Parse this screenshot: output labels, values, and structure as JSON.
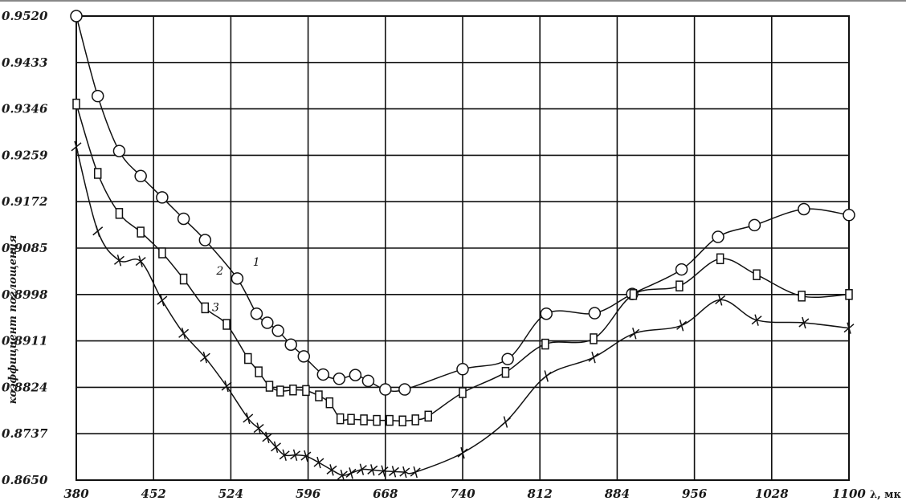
{
  "chart_data": {
    "type": "line",
    "title": "",
    "xlabel": "λ, мк",
    "ylabel": "коэффициент поглощения",
    "xlim": [
      380,
      1100
    ],
    "ylim": [
      0.865,
      0.952
    ],
    "xticks": [
      "380",
      "452",
      "524",
      "596",
      "668",
      "740",
      "812",
      "884",
      "956",
      "1028",
      "1100"
    ],
    "yticks": [
      "0.8650",
      "0.8737",
      "0.8824",
      "0.8911",
      "0.8998",
      "0.9085",
      "0.9172",
      "0.9259",
      "0.9346",
      "0.9433",
      "0.9520"
    ],
    "grid": true,
    "series": [
      {
        "name": "1",
        "marker": "circle",
        "x": [
          380,
          400,
          420,
          440,
          460,
          480,
          500,
          530,
          548,
          558,
          568,
          580,
          592,
          610,
          625,
          640,
          652,
          668,
          686,
          740,
          782,
          818,
          863,
          898,
          944,
          978,
          1012,
          1058,
          1100
        ],
        "y": [
          0.952,
          0.937,
          0.9267,
          0.922,
          0.918,
          0.914,
          0.91,
          0.9028,
          0.8962,
          0.8945,
          0.893,
          0.8904,
          0.8882,
          0.8848,
          0.884,
          0.8847,
          0.8836,
          0.882,
          0.882,
          0.8858,
          0.8877,
          0.8962,
          0.8963,
          0.8999,
          0.9045,
          0.9106,
          0.9128,
          0.9158,
          0.9147
        ]
      },
      {
        "name": "2",
        "marker": "square",
        "x": [
          380,
          400,
          420,
          440,
          460,
          480,
          500,
          520,
          540,
          550,
          560,
          570,
          582,
          594,
          606,
          616,
          626,
          636,
          648,
          660,
          672,
          684,
          696,
          708,
          740,
          780,
          817,
          862,
          899,
          942,
          980,
          1014,
          1056,
          1100
        ],
        "y": [
          0.9355,
          0.9225,
          0.915,
          0.9115,
          0.9076,
          0.9027,
          0.8973,
          0.8942,
          0.8878,
          0.8853,
          0.8826,
          0.8817,
          0.8819,
          0.8818,
          0.8808,
          0.8795,
          0.8765,
          0.8764,
          0.8763,
          0.8762,
          0.8762,
          0.8761,
          0.8763,
          0.877,
          0.8814,
          0.8852,
          0.8905,
          0.8915,
          0.8998,
          0.9014,
          0.9065,
          0.9035,
          0.8995,
          0.8998
        ]
      },
      {
        "name": "3",
        "marker": "x",
        "x": [
          380,
          400,
          420,
          440,
          460,
          480,
          500,
          520,
          540,
          550,
          558,
          566,
          574,
          584,
          594,
          606,
          618,
          628,
          636,
          646,
          656,
          666,
          676,
          686,
          696,
          740,
          780,
          818,
          862,
          900,
          944,
          980,
          1014,
          1058,
          1100
        ],
        "y": [
          0.9275,
          0.9117,
          0.9062,
          0.906,
          0.8987,
          0.8925,
          0.888,
          0.8826,
          0.8766,
          0.8747,
          0.873,
          0.8712,
          0.8697,
          0.8697,
          0.8695,
          0.8683,
          0.8669,
          0.8659,
          0.8663,
          0.867,
          0.8669,
          0.8667,
          0.8666,
          0.8665,
          0.8665,
          0.8701,
          0.8759,
          0.8845,
          0.888,
          0.8925,
          0.894,
          0.8988,
          0.895,
          0.8945,
          0.8935
        ]
      }
    ],
    "curve_labels": [
      {
        "text": "1",
        "at_x": 537,
        "at_y": 0.904
      },
      {
        "text": "2",
        "at_x": 503,
        "at_y": 0.9023
      },
      {
        "text": "3",
        "at_x": 499,
        "at_y": 0.8955
      }
    ]
  }
}
